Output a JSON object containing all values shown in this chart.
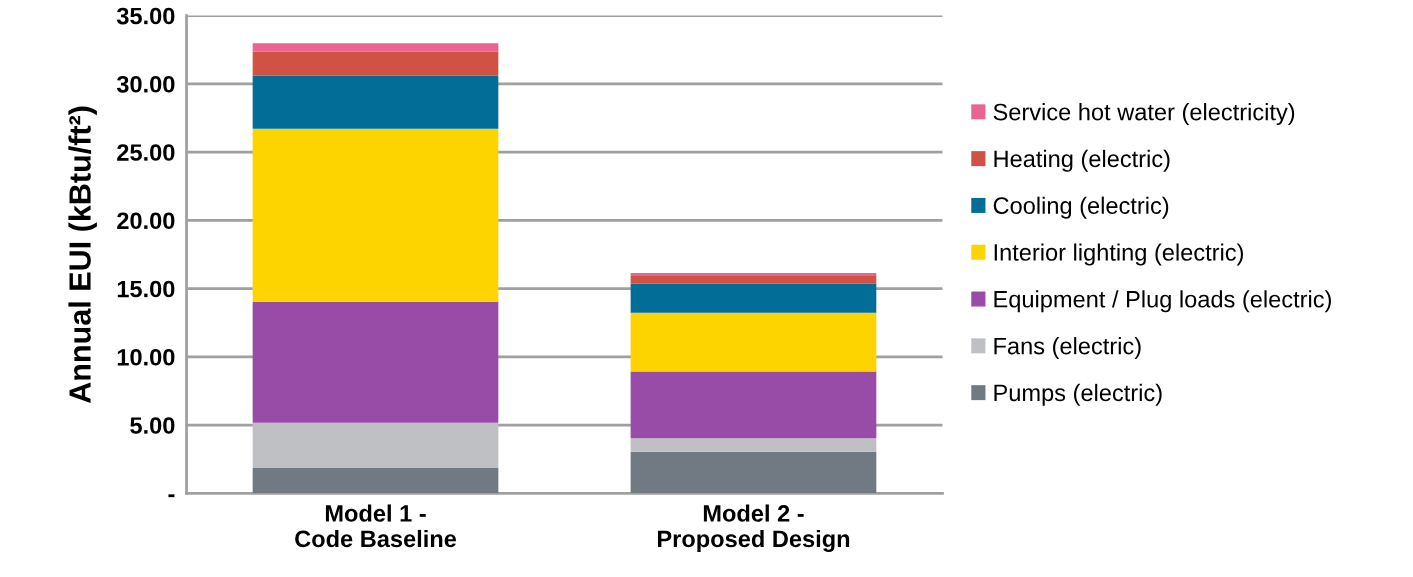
{
  "chart_data": {
    "type": "bar",
    "stacked": true,
    "ylabel": "Annual EUI (kBtu/ft²)",
    "categories": [
      "Model 1 -\nCode Baseline",
      "Model 2 -\nProposed Design"
    ],
    "series": [
      {
        "name": "Pumps (electric)",
        "color": "#717a83",
        "values": [
          1.85,
          3.04
        ]
      },
      {
        "name": "Fans (electric)",
        "color": "#bfc0c3",
        "values": [
          3.33,
          1.0
        ]
      },
      {
        "name": "Equipment / Plug loads (electric)",
        "color": "#984ca8",
        "values": [
          8.85,
          4.89
        ]
      },
      {
        "name": "Interior lighting (electric)",
        "color": "#fdd300",
        "values": [
          12.68,
          4.3
        ]
      },
      {
        "name": "Cooling (electric)",
        "color": "#026e97",
        "values": [
          3.89,
          2.14
        ]
      },
      {
        "name": "Heating (electric)",
        "color": "#cf5244",
        "values": [
          1.75,
          0.56
        ]
      },
      {
        "name": "Service hot water (electricity)",
        "color": "#e9648f",
        "values": [
          0.62,
          0.22
        ]
      }
    ],
    "ylim": [
      0,
      35
    ],
    "yticks": [
      {
        "value": 0,
        "label": "-"
      },
      {
        "value": 5,
        "label": "5.00"
      },
      {
        "value": 10,
        "label": "10.00"
      },
      {
        "value": 15,
        "label": "15.00"
      },
      {
        "value": 20,
        "label": "20.00"
      },
      {
        "value": 25,
        "label": "25.00"
      },
      {
        "value": 30,
        "label": "30.00"
      },
      {
        "value": 35,
        "label": "35.00"
      }
    ],
    "grid": "y",
    "legend": "right"
  }
}
